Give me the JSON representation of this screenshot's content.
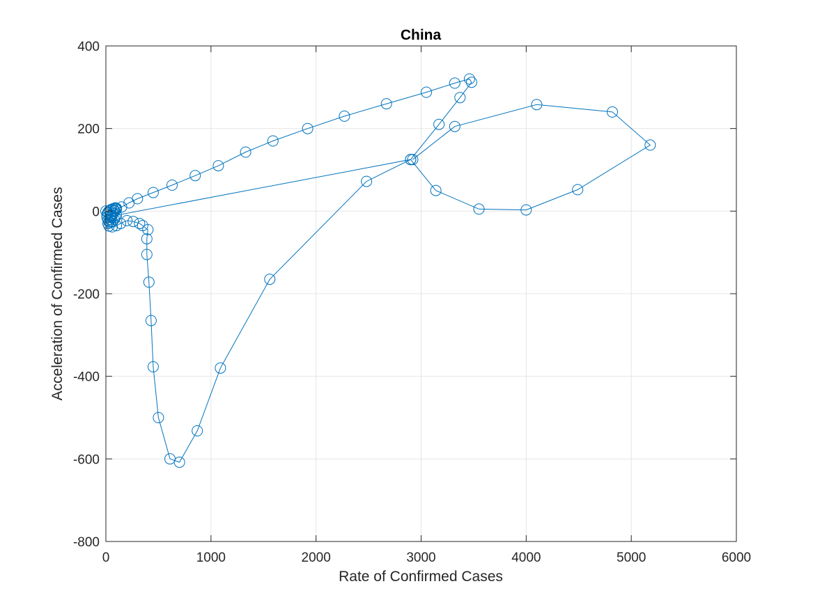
{
  "chart_data": {
    "type": "line",
    "title": "China",
    "xlabel": "Rate of Confirmed Cases",
    "ylabel": "Acceleration of Confirmed Cases",
    "xlim": [
      0,
      6000
    ],
    "ylim": [
      -800,
      400
    ],
    "xticks": [
      0,
      1000,
      2000,
      3000,
      4000,
      5000,
      6000
    ],
    "yticks": [
      -800,
      -600,
      -400,
      -200,
      0,
      200,
      400
    ],
    "xtick_labels": [
      "0",
      "1000",
      "2000",
      "3000",
      "4000",
      "5000",
      "6000"
    ],
    "ytick_labels": [
      "-800",
      "-600",
      "-400",
      "-200",
      "0",
      "200",
      "400"
    ],
    "grid": true,
    "marker": "open circle",
    "color": "#0072BD",
    "series": [
      {
        "x": [
          0,
          20,
          40,
          60,
          80,
          100,
          150,
          220,
          300,
          450,
          630,
          850,
          1070,
          1330,
          1590,
          1920,
          2270,
          2670,
          3050,
          3320,
          3460,
          3480,
          3370,
          3170,
          2900,
          2480,
          1560,
          1090,
          870,
          700,
          610,
          500,
          450,
          430,
          410,
          390,
          390,
          400,
          350,
          320,
          260,
          200,
          140,
          100,
          60,
          30,
          20,
          30,
          40,
          50,
          60,
          70,
          80,
          90,
          100,
          90,
          70,
          50,
          40,
          30,
          20,
          10,
          10,
          20,
          40,
          60,
          80,
          90,
          100,
          2900,
          3140,
          3550,
          4000,
          4490,
          5180,
          4820,
          4100,
          3320,
          2920
        ],
        "y": [
          0,
          -5,
          -10,
          -10,
          2,
          5,
          10,
          20,
          30,
          45,
          63,
          86,
          110,
          143,
          170,
          200,
          230,
          260,
          288,
          310,
          320,
          312,
          275,
          210,
          125,
          72,
          -165,
          -380,
          -532,
          -608,
          -600,
          -500,
          -377,
          -265,
          -172,
          -105,
          -67,
          -45,
          -35,
          -30,
          -25,
          -23,
          -30,
          -35,
          -38,
          -36,
          -30,
          -25,
          -20,
          -15,
          -10,
          -5,
          0,
          5,
          7,
          8,
          6,
          4,
          2,
          0,
          -3,
          -8,
          -15,
          -22,
          -28,
          -26,
          -20,
          -15,
          -10,
          125,
          50,
          5,
          3,
          52,
          160,
          240,
          258,
          205,
          125
        ]
      }
    ]
  }
}
